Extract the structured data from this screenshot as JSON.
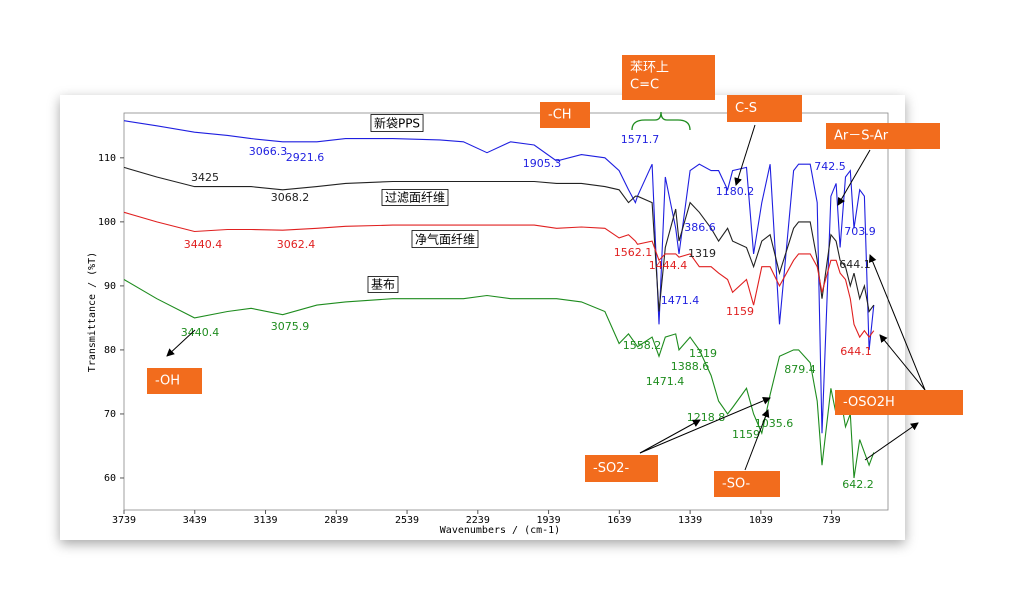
{
  "chart_data": {
    "type": "line",
    "x_label": "Wavenumbers / (cm-1)",
    "y_label": "Transmittance / (%T)",
    "xlim": [
      3739,
      500
    ],
    "ylim": [
      55,
      117
    ],
    "xticks": [
      3739,
      3439,
      3139,
      2839,
      2539,
      2239,
      1939,
      1639,
      1339,
      1039,
      739
    ],
    "yticks": [
      60,
      70,
      80,
      90,
      100,
      110
    ],
    "x": [
      3739,
      3600,
      3440,
      3300,
      3200,
      3066,
      2921,
      2800,
      2600,
      2400,
      2300,
      2200,
      2100,
      2000,
      1905,
      1800,
      1700,
      1640,
      1600,
      1571,
      1562,
      1500,
      1471,
      1444,
      1400,
      1386,
      1339,
      1300,
      1250,
      1218,
      1180,
      1159,
      1100,
      1070,
      1035,
      1000,
      960,
      900,
      879,
      830,
      800,
      780,
      742,
      720,
      703,
      680,
      660,
      644,
      620,
      600,
      580,
      560
    ],
    "series": [
      {
        "name": "新袋PPS",
        "color": "#1f1fe0",
        "values": [
          115.8,
          115,
          114,
          113.5,
          113,
          112.5,
          112.5,
          113,
          113,
          112.8,
          112.5,
          110.8,
          112.5,
          112,
          109.5,
          110.5,
          110,
          108,
          105,
          103,
          104,
          109,
          84,
          107,
          99,
          95,
          108,
          109,
          108,
          108,
          105,
          108,
          108.5,
          95,
          103,
          109,
          84,
          108,
          109,
          109,
          103,
          67,
          104,
          106,
          96,
          107,
          108,
          99,
          105,
          104,
          80,
          87
        ],
        "peak_labels": [
          "3066.3",
          "2921.6",
          "1905.3",
          "1571.7",
          "1180.2",
          "386.6",
          "742.5",
          "703.9",
          "1471.4"
        ]
      },
      {
        "name": "过滤面纤维",
        "color": "#222222",
        "values": [
          108.5,
          107,
          105.5,
          105.5,
          105.5,
          105,
          105.5,
          106,
          106.3,
          106.3,
          106.3,
          106.3,
          106.3,
          106.3,
          106,
          106,
          105.5,
          105,
          103,
          104,
          104,
          103,
          86,
          96,
          102,
          97,
          103,
          101.5,
          99,
          97,
          99,
          97,
          96,
          93,
          97,
          98,
          92,
          99,
          100,
          100,
          94,
          88,
          98,
          97,
          94,
          93,
          90,
          92,
          88,
          90,
          86,
          87
        ],
        "peak_labels": [
          "3425",
          "3068.2",
          "644.1",
          "1319"
        ]
      },
      {
        "name": "净气面纤维",
        "color": "#e02020",
        "values": [
          101.5,
          100,
          98.5,
          98.8,
          98.8,
          98.7,
          99,
          99.3,
          99.5,
          99.5,
          99.5,
          99.5,
          99.5,
          99.5,
          99,
          99.2,
          99,
          97.5,
          98,
          97,
          96.5,
          97,
          94,
          95,
          95,
          94.5,
          95,
          93,
          93,
          92,
          91,
          89,
          91,
          87,
          93,
          93,
          90,
          94,
          95,
          95,
          93,
          89,
          94,
          94,
          92,
          91,
          88,
          84,
          82,
          83,
          82,
          83
        ],
        "peak_labels": [
          "3440.4",
          "3062.4",
          "1562.1",
          "1444.4",
          "1159",
          "644.1"
        ]
      },
      {
        "name": "基布",
        "color": "#1e8c1e",
        "values": [
          91,
          88,
          85,
          86,
          86.5,
          85.5,
          87,
          87.5,
          88,
          88,
          88,
          88.5,
          88,
          88,
          88,
          87.5,
          86,
          81,
          82.5,
          81,
          80.5,
          82,
          79,
          82,
          82.5,
          80,
          82,
          80,
          76,
          72,
          70,
          71,
          74,
          70,
          67,
          73,
          79,
          80,
          80,
          78,
          72,
          62,
          74,
          70,
          73,
          68,
          70,
          60,
          66,
          64,
          62,
          64
        ],
        "peak_labels": [
          "3440.4",
          "3075.9",
          "1558.2",
          "1471.4",
          "1388.6",
          "1319",
          "1218.8",
          "1159",
          "1035.6",
          "879.4",
          "642.2"
        ]
      }
    ],
    "annotations": [
      [
        "-CH"
      ],
      [
        "苯环上",
        "C=C"
      ],
      [
        "C-S"
      ],
      [
        "Ar－S-Ar"
      ],
      [
        "-OH"
      ],
      [
        "-OSO2H"
      ],
      [
        "-SO2-"
      ],
      [
        "-SO-"
      ]
    ]
  }
}
